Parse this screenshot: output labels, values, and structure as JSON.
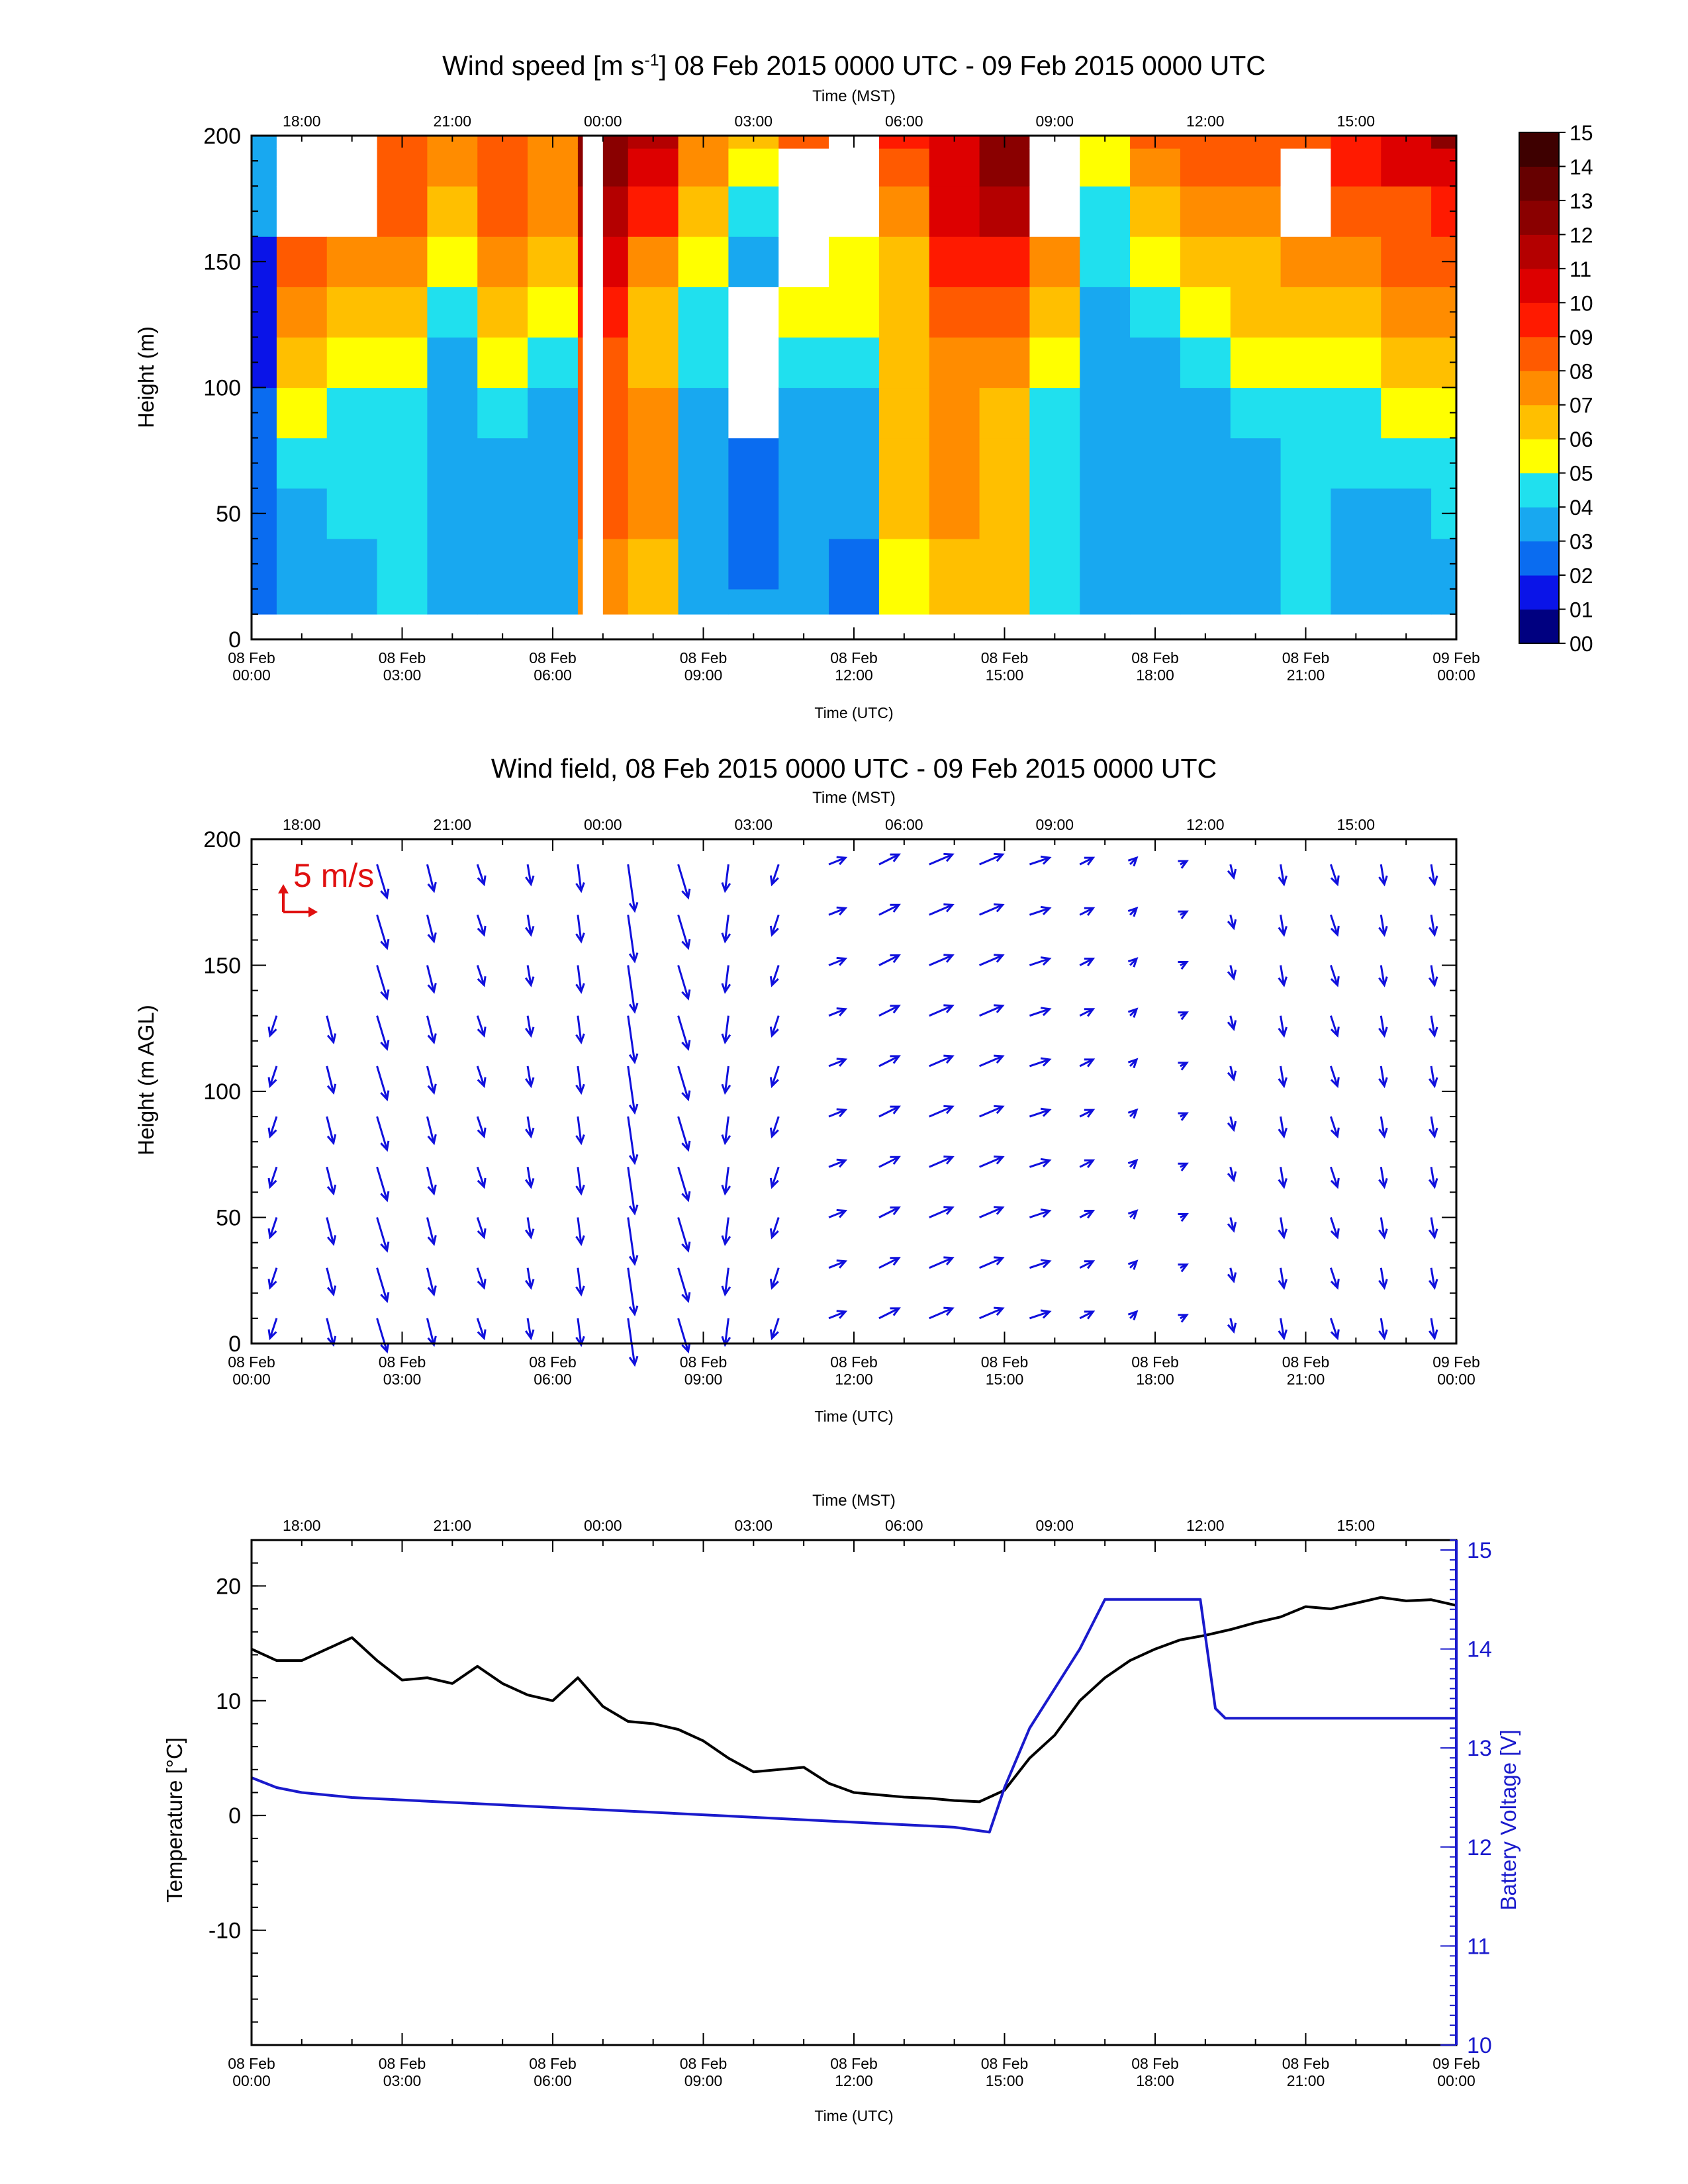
{
  "chart_data": [
    {
      "type": "heatmap",
      "title_main": "Wind speed [m s",
      "title_sup": "-1",
      "title_rest": "] 08 Feb 2015 0000 UTC - 09 Feb 2015 0000 UTC",
      "top_axis_label": "Time (MST)",
      "top_ticks": [
        "18:00",
        "21:00",
        "00:00",
        "03:00",
        "06:00",
        "09:00",
        "12:00",
        "15:00"
      ],
      "bottom_axis_label": "Time (UTC)",
      "bottom_ticks": [
        {
          "date": "08 Feb",
          "time": "00:00"
        },
        {
          "date": "08 Feb",
          "time": "03:00"
        },
        {
          "date": "08 Feb",
          "time": "06:00"
        },
        {
          "date": "08 Feb",
          "time": "09:00"
        },
        {
          "date": "08 Feb",
          "time": "12:00"
        },
        {
          "date": "08 Feb",
          "time": "15:00"
        },
        {
          "date": "08 Feb",
          "time": "18:00"
        },
        {
          "date": "08 Feb",
          "time": "21:00"
        },
        {
          "date": "09 Feb",
          "time": "00:00"
        }
      ],
      "ylabel": "Height (m)",
      "ylim": [
        0,
        200
      ],
      "yticks": [
        "0",
        "50",
        "100",
        "150",
        "200"
      ],
      "colorbar_labels": [
        "00",
        "01",
        "02",
        "03",
        "04",
        "05",
        "06",
        "07",
        "08",
        "09",
        "10",
        "11",
        "12",
        "13",
        "14",
        "15"
      ],
      "colorbar_colors": [
        "#000080",
        "#0a14e8",
        "#0a6cf0",
        "#18a8f0",
        "#20e0ee",
        "#ffff00",
        "#ffbf00",
        "#ff8c00",
        "#ff5a00",
        "#ff1a00",
        "#dd0000",
        "#b40000",
        "#8a0000",
        "#660000",
        "#3e0000"
      ],
      "z_range": [
        0,
        15
      ],
      "time_hours_utc": [
        0,
        1,
        2,
        3,
        4,
        5,
        6,
        7,
        8,
        9,
        10,
        11,
        12,
        13,
        14,
        15,
        16,
        17,
        18,
        19,
        20,
        21,
        22,
        23,
        24
      ],
      "heights_m": [
        10,
        30,
        50,
        70,
        90,
        110,
        130,
        150,
        170,
        190,
        200
      ],
      "wind_speed_ms": [
        [
          2,
          2,
          2,
          2,
          2,
          1,
          1,
          1,
          3,
          3,
          3
        ],
        [
          3,
          3,
          3,
          4,
          5,
          6,
          7,
          8,
          null,
          null,
          null
        ],
        [
          3,
          3,
          4,
          4,
          4,
          5,
          6,
          7,
          null,
          null,
          null
        ],
        [
          4,
          4,
          4,
          4,
          4,
          5,
          6,
          7,
          8,
          8,
          8
        ],
        [
          3,
          3,
          3,
          3,
          3,
          3,
          4,
          5,
          6,
          7,
          7
        ],
        [
          3,
          3,
          3,
          3,
          4,
          5,
          6,
          7,
          8,
          8,
          8
        ],
        [
          3,
          3,
          3,
          3,
          3,
          4,
          5,
          6,
          7,
          7,
          7
        ],
        [
          7,
          7,
          8,
          8,
          8,
          8,
          9,
          10,
          11,
          12,
          12
        ],
        [
          6,
          6,
          7,
          7,
          7,
          6,
          6,
          7,
          9,
          10,
          11
        ],
        [
          3,
          3,
          3,
          3,
          3,
          4,
          4,
          5,
          6,
          7,
          7
        ],
        [
          3,
          2,
          2,
          2,
          null,
          null,
          null,
          3,
          4,
          5,
          6
        ],
        [
          3,
          3,
          3,
          3,
          3,
          4,
          5,
          null,
          null,
          null,
          8
        ],
        [
          2,
          2,
          3,
          3,
          3,
          4,
          5,
          5,
          null,
          null,
          null
        ],
        [
          5,
          5,
          6,
          6,
          6,
          6,
          6,
          6,
          7,
          8,
          9
        ],
        [
          6,
          6,
          7,
          7,
          7,
          7,
          8,
          9,
          10,
          10,
          10
        ],
        [
          6,
          6,
          6,
          6,
          6,
          7,
          8,
          9,
          11,
          12,
          12
        ],
        [
          4,
          4,
          4,
          4,
          4,
          5,
          6,
          7,
          null,
          null,
          null
        ],
        [
          3,
          3,
          3,
          3,
          3,
          3,
          3,
          4,
          4,
          5,
          5
        ],
        [
          3,
          3,
          3,
          3,
          3,
          3,
          4,
          5,
          6,
          7,
          8
        ],
        [
          3,
          3,
          3,
          3,
          3,
          4,
          5,
          6,
          7,
          8,
          8
        ],
        [
          3,
          3,
          3,
          3,
          4,
          5,
          6,
          6,
          7,
          8,
          8
        ],
        [
          4,
          4,
          4,
          4,
          4,
          5,
          6,
          7,
          null,
          null,
          8
        ],
        [
          3,
          3,
          3,
          4,
          4,
          5,
          6,
          7,
          8,
          9,
          9
        ],
        [
          3,
          3,
          3,
          4,
          5,
          6,
          7,
          8,
          8,
          10,
          10
        ],
        [
          3,
          3,
          4,
          4,
          5,
          6,
          7,
          8,
          9,
          10,
          12
        ]
      ]
    },
    {
      "type": "vector",
      "title": "Wind field, 08 Feb 2015 0000 UTC - 09 Feb 2015 0000 UTC",
      "top_axis_label": "Time (MST)",
      "bottom_axis_label": "Time (UTC)",
      "ylabel": "Height (m AGL)",
      "ylim": [
        0,
        200
      ],
      "yticks": [
        "0",
        "50",
        "100",
        "150",
        "200"
      ],
      "reference_vector_label": "5 m/s",
      "reference_color": "#e01010",
      "vector_color": "#1010dd",
      "heights_m": [
        10,
        30,
        50,
        70,
        90,
        110,
        130,
        150,
        170,
        190
      ],
      "time_hours_utc": [
        0.5,
        1.5,
        2.5,
        3.5,
        4.5,
        5.5,
        6.5,
        7.5,
        8.5,
        9.5,
        10.5,
        11.5,
        12.5,
        13.5,
        14.5,
        15.5,
        16.5,
        17.5,
        18.5,
        19.5,
        20.5,
        21.5,
        22.5,
        23.5
      ],
      "u_ms": [
        -1,
        1,
        1.5,
        1,
        1,
        0.5,
        0.5,
        1,
        1.5,
        -0.5,
        -1,
        2.5,
        3,
        3.5,
        3.5,
        3,
        2,
        1,
        1,
        0.5,
        0.5,
        1,
        0.5,
        0.5
      ],
      "v_ms": [
        -3,
        -4,
        -5,
        -4,
        -3,
        -3,
        -4,
        -7,
        -5,
        -4,
        -3,
        1,
        1.5,
        1.5,
        1.5,
        1,
        1,
        1,
        0.5,
        -2,
        -3,
        -3,
        -3,
        -3
      ]
    },
    {
      "type": "line",
      "top_axis_label": "Time (MST)",
      "bottom_axis_label": "Time (UTC)",
      "ylabel": "Temperature [°C]",
      "ylim": [
        -20,
        24
      ],
      "yticks": [
        "-10",
        "0",
        "10",
        "20"
      ],
      "y2label": "Battery Voltage [V]",
      "y2lim": [
        10,
        15.1
      ],
      "y2ticks": [
        "10",
        "11",
        "12",
        "13",
        "14",
        "15"
      ],
      "series": [
        {
          "axis": "left",
          "color": "#000000",
          "x_hours_utc": [
            0,
            0.5,
            1,
            1.5,
            2,
            2.5,
            3,
            3.5,
            4,
            4.5,
            5,
            5.5,
            6,
            6.5,
            7,
            7.5,
            8,
            8.5,
            9,
            9.5,
            10,
            10.5,
            11,
            11.5,
            12,
            12.5,
            13,
            13.5,
            14,
            14.5,
            15,
            15.5,
            16,
            16.5,
            17,
            17.5,
            18,
            18.5,
            19,
            19.5,
            20,
            20.5,
            21,
            21.5,
            22,
            22.5,
            23,
            23.5,
            24
          ],
          "y": [
            14.5,
            13.5,
            13.5,
            14.5,
            15.5,
            13.5,
            11.8,
            12,
            11.5,
            13,
            11.5,
            10.5,
            10,
            12,
            9.5,
            8.2,
            8,
            7.5,
            6.5,
            5,
            3.8,
            4,
            4.2,
            2.8,
            2,
            1.8,
            1.6,
            1.5,
            1.3,
            1.2,
            2.2,
            5,
            7,
            10,
            12,
            13.5,
            14.5,
            15.3,
            15.7,
            16.2,
            16.8,
            17.3,
            18.2,
            18,
            18.5,
            19,
            18.7,
            18.8,
            18.3
          ]
        },
        {
          "axis": "right",
          "color": "#1a1acc",
          "x_hours_utc": [
            0,
            0.5,
            1,
            2,
            4,
            6,
            8,
            10,
            12,
            14,
            14.7,
            15,
            15.5,
            16,
            16.5,
            17,
            17.5,
            18,
            18.5,
            18.9,
            19.2,
            19.4,
            20,
            21,
            22,
            23,
            24
          ],
          "y": [
            12.7,
            12.6,
            12.55,
            12.5,
            12.45,
            12.4,
            12.35,
            12.3,
            12.25,
            12.2,
            12.15,
            12.6,
            13.2,
            13.6,
            14.0,
            14.5,
            14.5,
            14.5,
            14.5,
            14.5,
            13.4,
            13.3,
            13.3,
            13.3,
            13.3,
            13.3,
            13.3
          ]
        }
      ]
    }
  ]
}
